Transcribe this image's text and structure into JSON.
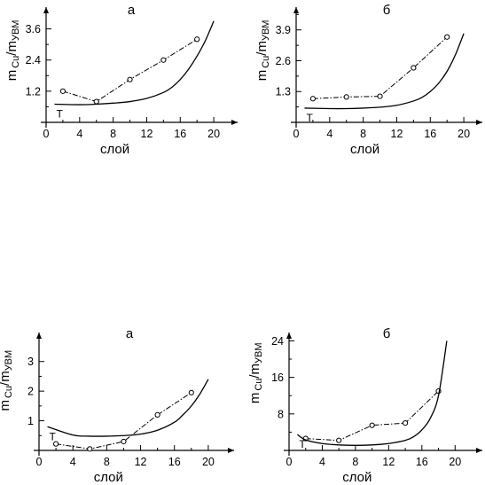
{
  "chart_data": [
    {
      "type": "line",
      "title": "а",
      "xlabel": "слой",
      "ylabel_main": "m",
      "ylabel_sub": "Cu",
      "ylabel_sep": "/m",
      "ylabel_sub2": "УВМ",
      "xlim": [
        0,
        22
      ],
      "ylim": [
        0,
        4.2
      ],
      "xticks": [
        0,
        4,
        8,
        12,
        16,
        20
      ],
      "xtick_labels": [
        "0",
        "4",
        "8",
        "12",
        "16",
        "20"
      ],
      "yticks": [
        1.2,
        2.4,
        3.6
      ],
      "ytick_labels": [
        "1.2",
        "2.4",
        "3.6"
      ],
      "curve_label": "T",
      "series": [
        {
          "style": "dash-dot-markers",
          "x": [
            2,
            6,
            10,
            14,
            18
          ],
          "y": [
            1.2,
            0.8,
            1.65,
            2.4,
            3.2
          ]
        },
        {
          "style": "solid",
          "x": [
            1,
            4,
            6,
            8,
            10,
            12,
            14,
            15,
            16,
            17,
            18,
            19,
            20
          ],
          "y": [
            0.7,
            0.68,
            0.7,
            0.74,
            0.8,
            0.92,
            1.15,
            1.35,
            1.65,
            2.05,
            2.55,
            3.15,
            3.9
          ]
        }
      ]
    },
    {
      "type": "line",
      "title": "б",
      "xlabel": "слой",
      "ylabel_main": "m",
      "ylabel_sub": "Cu",
      "ylabel_sep": "/m",
      "ylabel_sub2": "УВМ",
      "xlim": [
        0,
        22
      ],
      "ylim": [
        0,
        4.6
      ],
      "xticks": [
        0,
        4,
        8,
        12,
        16,
        20
      ],
      "xtick_labels": [
        "0",
        "4",
        "8",
        "12",
        "16",
        "20"
      ],
      "yticks": [
        1.3,
        2.6,
        3.9
      ],
      "ytick_labels": [
        "1.3",
        "2.6",
        "3.9"
      ],
      "curve_label": "T",
      "series": [
        {
          "style": "dash-dot-markers",
          "x": [
            2,
            6,
            10,
            14,
            18
          ],
          "y": [
            1.0,
            1.07,
            1.1,
            2.3,
            3.6
          ]
        },
        {
          "style": "solid",
          "x": [
            1,
            4,
            6,
            8,
            10,
            12,
            14,
            15,
            16,
            17,
            18,
            19,
            20
          ],
          "y": [
            0.6,
            0.58,
            0.58,
            0.6,
            0.64,
            0.72,
            0.9,
            1.05,
            1.3,
            1.65,
            2.15,
            2.85,
            3.75
          ]
        }
      ]
    },
    {
      "type": "line",
      "title": "а",
      "xlabel": "слой",
      "ylabel_main": "m",
      "ylabel_sub": "Cu",
      "ylabel_sep": "/m",
      "ylabel_sub2": "УВМ",
      "xlim": [
        0,
        22
      ],
      "ylim": [
        0,
        3.5
      ],
      "xticks": [
        0,
        4,
        8,
        12,
        16,
        20
      ],
      "xtick_labels": [
        "0",
        "4",
        "8",
        "12",
        "16",
        "20"
      ],
      "yticks": [
        1,
        2,
        3
      ],
      "ytick_labels": [
        "1",
        "2",
        "3"
      ],
      "curve_label": "T",
      "series": [
        {
          "style": "dash-dot-markers",
          "x": [
            2,
            6,
            10,
            14,
            18
          ],
          "y": [
            0.22,
            0.05,
            0.3,
            1.2,
            1.95
          ]
        },
        {
          "style": "solid",
          "x": [
            1,
            4,
            6,
            8,
            10,
            12,
            14,
            16,
            17,
            18,
            19,
            20
          ],
          "y": [
            0.8,
            0.52,
            0.48,
            0.48,
            0.5,
            0.55,
            0.68,
            0.95,
            1.2,
            1.5,
            1.9,
            2.4
          ]
        }
      ]
    },
    {
      "type": "line",
      "title": "б",
      "xlabel": "слой",
      "ylabel_main": "m",
      "ylabel_sub": "Cu",
      "ylabel_sep": "/m",
      "ylabel_sub2": "УВМ",
      "xlim": [
        0,
        22
      ],
      "ylim": [
        0,
        27
      ],
      "xticks": [
        0,
        4,
        8,
        12,
        16,
        20
      ],
      "xtick_labels": [
        "0",
        "4",
        "8",
        "12",
        "16",
        "20"
      ],
      "yticks": [
        8,
        16,
        24
      ],
      "ytick_labels": [
        "8",
        "16",
        "24"
      ],
      "curve_label": "T",
      "series": [
        {
          "style": "dash-dot-markers",
          "x": [
            2,
            6,
            10,
            14,
            18
          ],
          "y": [
            2.6,
            2.2,
            5.5,
            6.0,
            13.0
          ]
        },
        {
          "style": "solid",
          "x": [
            1,
            2,
            4,
            6,
            8,
            10,
            12,
            14,
            15,
            16,
            17,
            18,
            19
          ],
          "y": [
            3.5,
            2.3,
            1.5,
            1.2,
            1.1,
            1.2,
            1.5,
            2.2,
            3.0,
            4.5,
            7.0,
            12.0,
            24.0
          ]
        }
      ]
    }
  ]
}
